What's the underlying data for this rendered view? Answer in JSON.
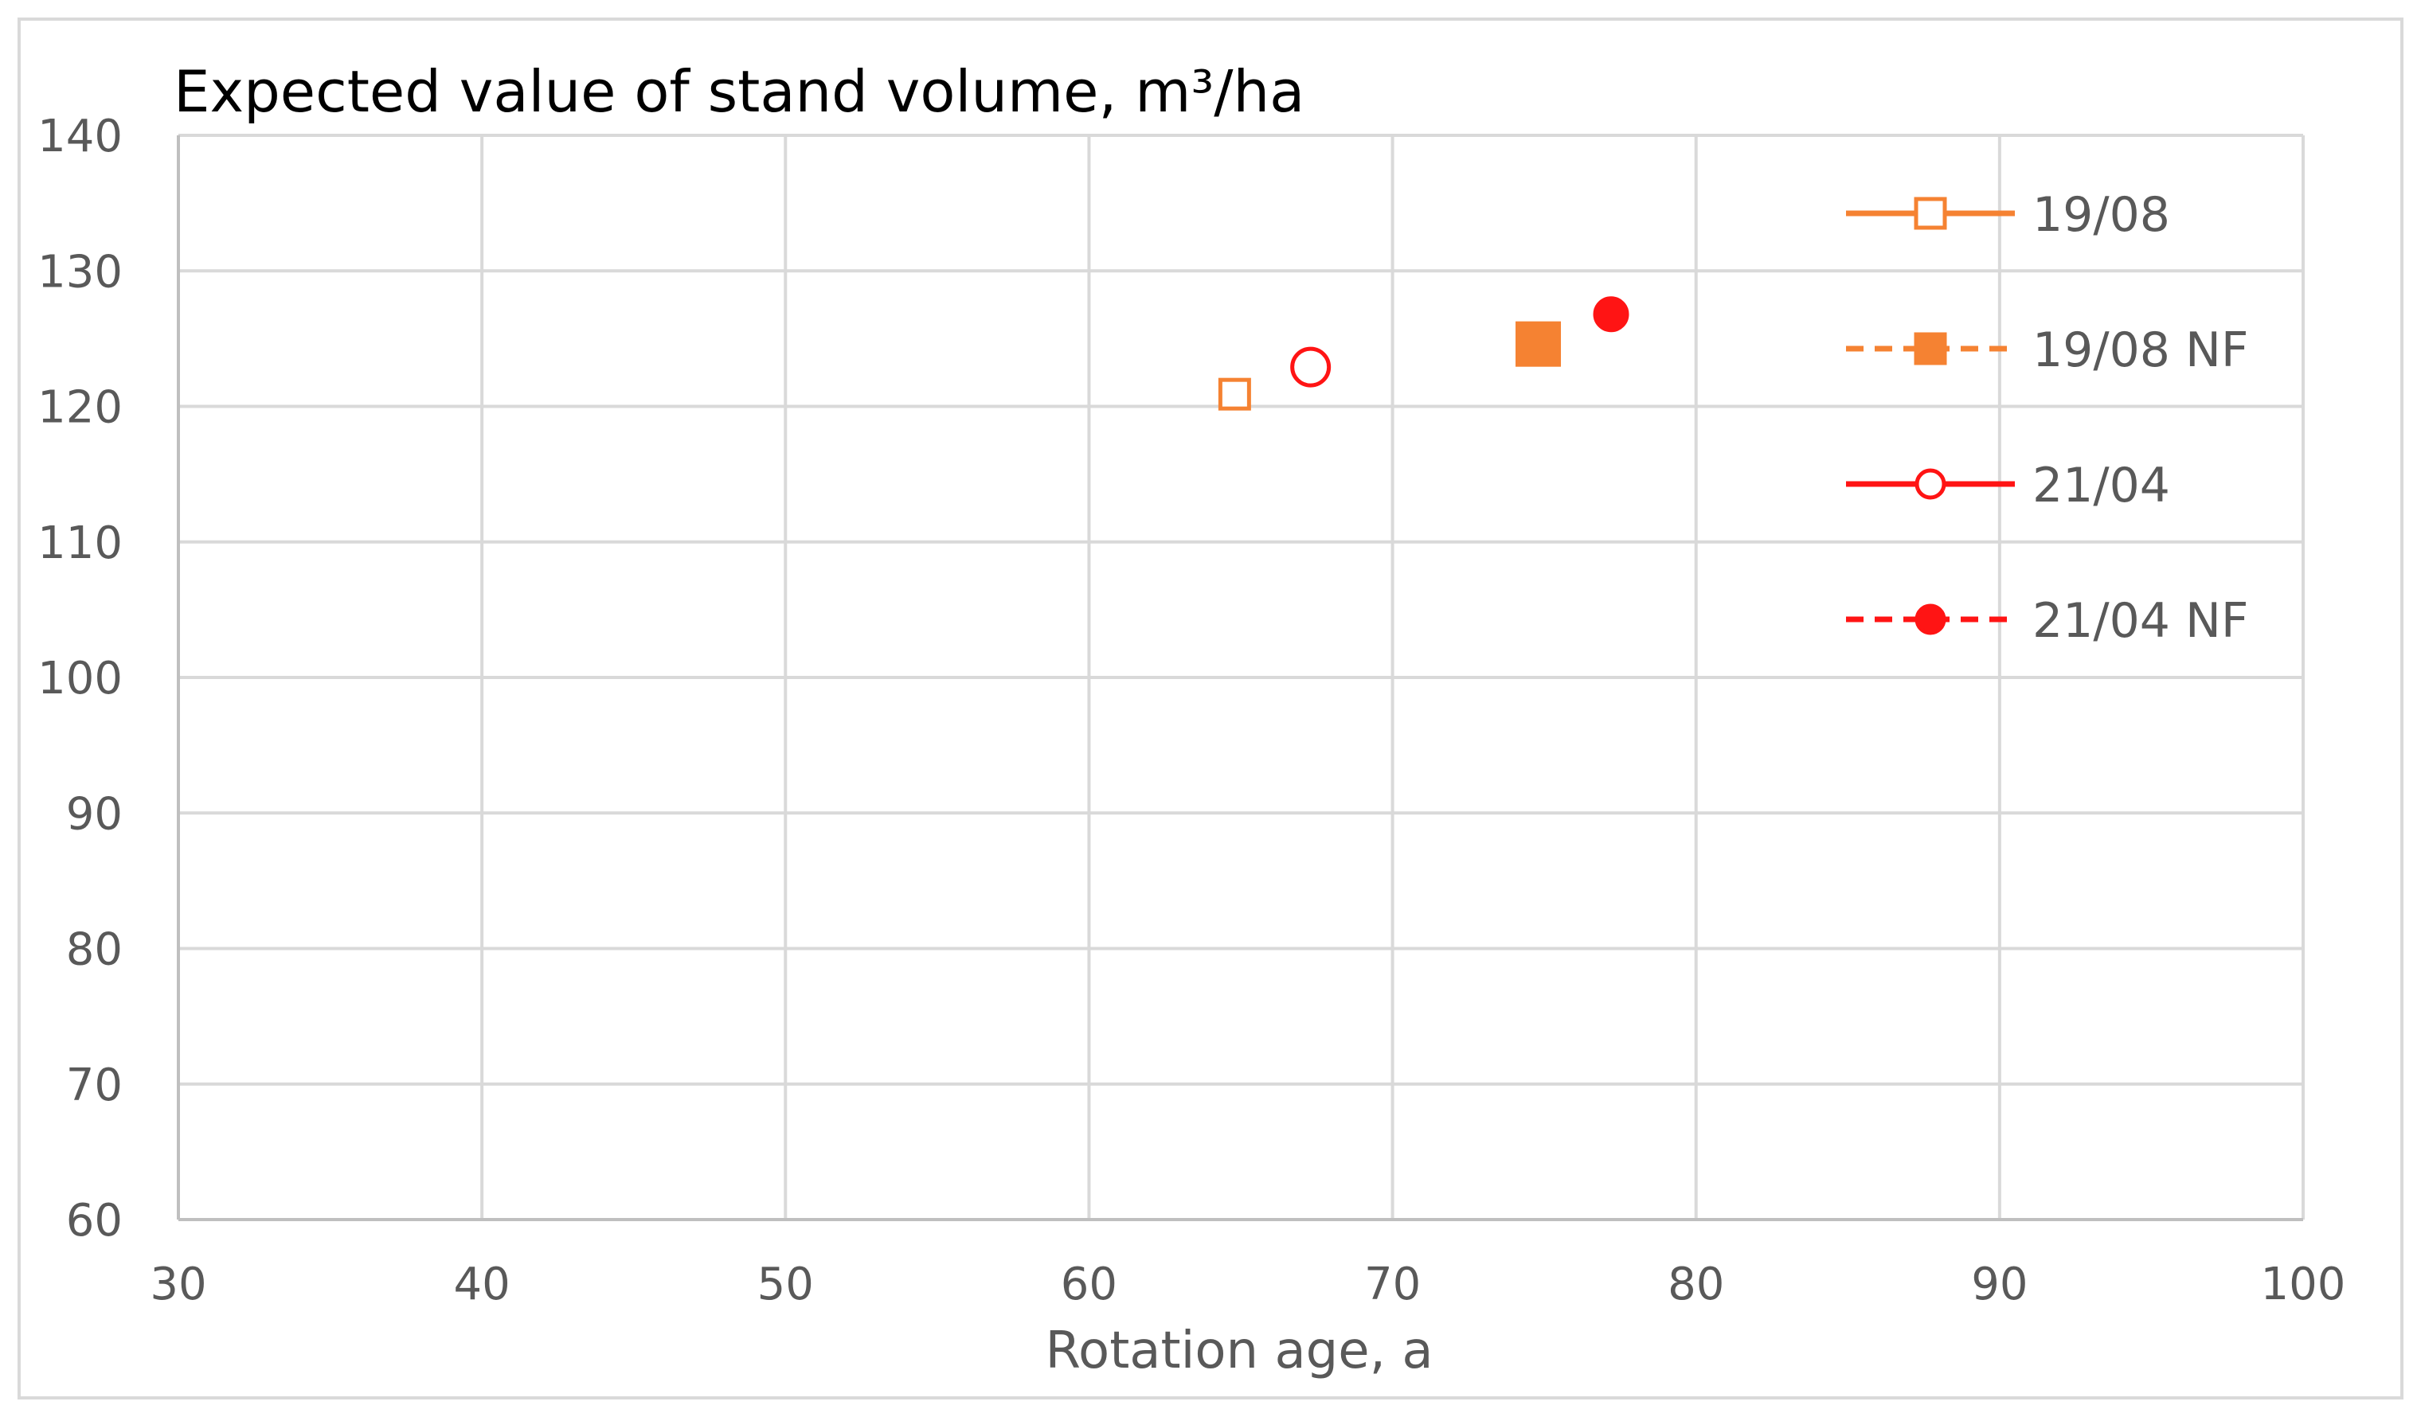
{
  "chart_data": {
    "type": "scatter",
    "title": "Expected value of stand volume,  m³/ha",
    "xlabel": "Rotation age, a",
    "ylabel": "",
    "xlim": [
      30,
      100
    ],
    "ylim": [
      60,
      140
    ],
    "x_ticks": [
      30,
      40,
      50,
      60,
      70,
      80,
      90,
      100
    ],
    "y_ticks": [
      60,
      70,
      80,
      90,
      100,
      110,
      120,
      130,
      140
    ],
    "grid": true,
    "legend_position": "right",
    "series": [
      {
        "name": "19/08",
        "marker": "square",
        "filled": false,
        "line": "solid",
        "color": "#f58232",
        "x": [
          64.8
        ],
        "y": [
          120.9
        ]
      },
      {
        "name": "19/08 NF",
        "marker": "square",
        "filled": true,
        "line": "dashed",
        "color": "#f58232",
        "x": [
          74.8
        ],
        "y": [
          124.6
        ]
      },
      {
        "name": "21/04",
        "marker": "circle",
        "filled": false,
        "line": "solid",
        "color": "#ff1414",
        "x": [
          67.3
        ],
        "y": [
          122.9
        ]
      },
      {
        "name": "21/04 NF",
        "marker": "circle",
        "filled": true,
        "line": "dashed",
        "color": "#ff1414",
        "x": [
          77.2
        ],
        "y": [
          126.8
        ]
      }
    ]
  }
}
